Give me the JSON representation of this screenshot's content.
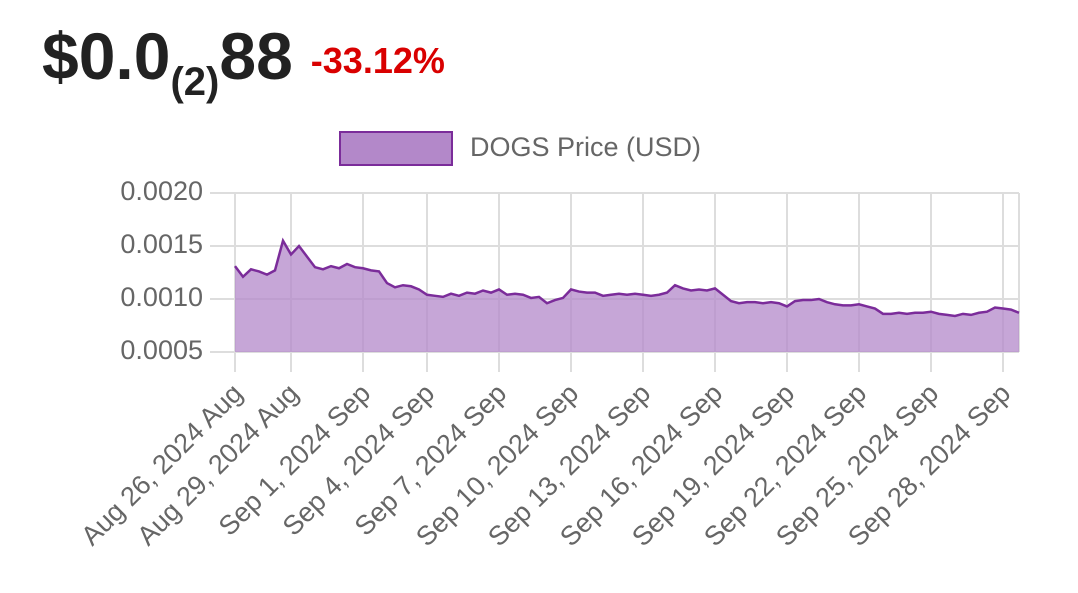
{
  "header": {
    "price": [
      "$0.0",
      "(2)",
      "88"
    ],
    "change": "-33.12%",
    "change_color": "#d90000"
  },
  "chart_data": {
    "type": "area",
    "categories": [
      "Aug 26, 2024 Aug",
      null,
      null,
      null,
      null,
      null,
      null,
      "Aug 29, 2024 Aug",
      null,
      null,
      null,
      null,
      null,
      null,
      null,
      null,
      "Sep 1, 2024 Sep",
      null,
      null,
      null,
      null,
      null,
      null,
      null,
      "Sep 4, 2024 Sep",
      null,
      null,
      null,
      null,
      null,
      null,
      null,
      null,
      "Sep 7, 2024 Sep",
      null,
      null,
      null,
      null,
      null,
      null,
      null,
      null,
      "Sep 10, 2024 Sep",
      null,
      null,
      null,
      null,
      null,
      null,
      null,
      null,
      "Sep 13, 2024 Sep",
      null,
      null,
      null,
      null,
      null,
      null,
      null,
      null,
      "Sep 16, 2024 Sep",
      null,
      null,
      null,
      null,
      null,
      null,
      null,
      null,
      "Sep 19, 2024 Sep",
      null,
      null,
      null,
      null,
      null,
      null,
      null,
      null,
      "Sep 22, 2024 Sep",
      null,
      null,
      null,
      null,
      null,
      null,
      null,
      null,
      "Sep 25, 2024 Sep",
      null,
      null,
      null,
      null,
      null,
      null,
      null,
      null,
      "Sep 28, 2024 Sep",
      null,
      null
    ],
    "series": [
      {
        "name": "DOGS Price (USD)",
        "color": "#7b2c9a",
        "fill": "#b388c9",
        "values": [
          0.00131,
          0.00121,
          0.00128,
          0.00126,
          0.00123,
          0.00127,
          0.00155,
          0.00142,
          0.0015,
          0.0014,
          0.0013,
          0.00128,
          0.00131,
          0.00129,
          0.00133,
          0.0013,
          0.00129,
          0.00127,
          0.00126,
          0.00115,
          0.00111,
          0.00113,
          0.00112,
          0.00109,
          0.00104,
          0.00103,
          0.00102,
          0.00105,
          0.00103,
          0.00106,
          0.00105,
          0.00108,
          0.00106,
          0.00109,
          0.00104,
          0.00105,
          0.00104,
          0.00101,
          0.00102,
          0.00096,
          0.00099,
          0.00101,
          0.00109,
          0.00107,
          0.00106,
          0.00106,
          0.00103,
          0.00104,
          0.00105,
          0.00104,
          0.00105,
          0.00104,
          0.00103,
          0.00104,
          0.00106,
          0.00113,
          0.0011,
          0.00108,
          0.00109,
          0.00108,
          0.0011,
          0.00104,
          0.00098,
          0.00096,
          0.00097,
          0.00097,
          0.00096,
          0.00097,
          0.00096,
          0.00093,
          0.00098,
          0.00099,
          0.00099,
          0.001,
          0.00097,
          0.00095,
          0.00094,
          0.00094,
          0.00095,
          0.00093,
          0.00091,
          0.00086,
          0.00086,
          0.00087,
          0.00086,
          0.00087,
          0.00087,
          0.00088,
          0.00086,
          0.00085,
          0.00084,
          0.00086,
          0.00085,
          0.00087,
          0.00088,
          0.00092,
          0.00091,
          0.0009,
          0.00087
        ]
      }
    ],
    "ylim": [
      0.0005,
      0.002
    ],
    "yticks": [
      {
        "value": 0.0005,
        "label": "0.0005"
      },
      {
        "value": 0.001,
        "label": "0.0010"
      },
      {
        "value": 0.0015,
        "label": "0.0015"
      },
      {
        "value": 0.002,
        "label": "0.0020"
      }
    ],
    "grid": true,
    "legend": "top"
  }
}
